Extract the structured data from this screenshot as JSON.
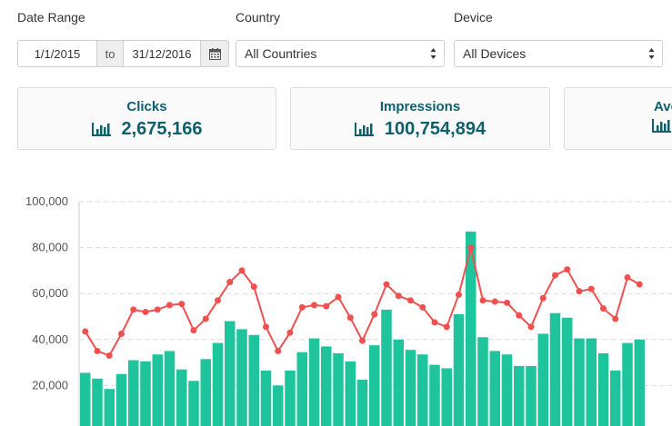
{
  "filters": {
    "date_range_label": "Date Range",
    "date_start": "1/1/2015",
    "date_to": "to",
    "date_end": "31/12/2016",
    "country_label": "Country",
    "country_value": "All Countries",
    "device_label": "Device",
    "device_value": "All Devices",
    "calendar_icon": "calendar-icon"
  },
  "cards": [
    {
      "title": "Clicks",
      "value": "2,675,166",
      "icon": "bar-chart-icon"
    },
    {
      "title": "Impressions",
      "value": "100,754,894",
      "icon": "bar-chart-icon"
    },
    {
      "title": "Ave",
      "value": "",
      "icon": "bar-chart-icon"
    }
  ],
  "colors": {
    "bar": "#1dc49c",
    "line": "#f05050",
    "title": "#0f5f6d"
  },
  "chart_data": {
    "type": "bar",
    "ylim": [
      0,
      100000
    ],
    "y_ticks": [
      "20,000",
      "40,000",
      "60,000",
      "80,000",
      "100,000"
    ],
    "grid": true,
    "series": [
      {
        "type": "bar",
        "values": [
          25500,
          23000,
          18500,
          25000,
          31000,
          30500,
          33500,
          35000,
          27000,
          22000,
          31500,
          38500,
          48000,
          44500,
          42000,
          26500,
          20000,
          26500,
          34500,
          40500,
          37000,
          34000,
          30500,
          22500,
          37500,
          53000,
          40000,
          35500,
          33500,
          29000,
          27500,
          51000,
          87000,
          41000,
          35000,
          33500,
          28500,
          28500,
          42500,
          51500,
          49500,
          40500,
          40500,
          34000,
          26500,
          38500,
          40000
        ]
      },
      {
        "type": "line",
        "values": [
          43500,
          35000,
          33000,
          42500,
          53000,
          52000,
          53000,
          55000,
          55500,
          44000,
          49000,
          57000,
          65000,
          70000,
          63000,
          45500,
          35000,
          43000,
          54000,
          55000,
          54500,
          58500,
          49500,
          39500,
          51000,
          64000,
          59000,
          57000,
          54000,
          47500,
          45500,
          59500,
          80000,
          57000,
          56500,
          56000,
          50500,
          45500,
          58000,
          68000,
          70500,
          61000,
          62000,
          53500,
          49000,
          67000,
          64000
        ]
      }
    ]
  }
}
